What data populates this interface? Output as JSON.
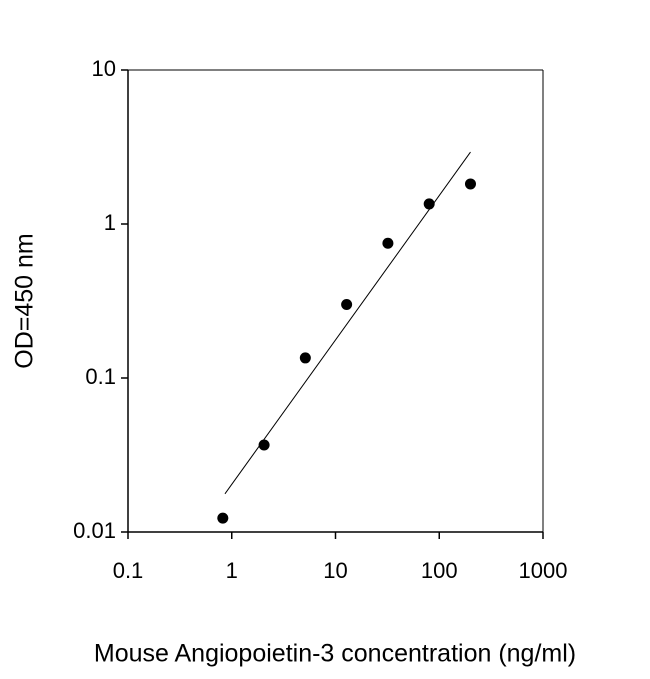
{
  "chart_data": {
    "type": "scatter",
    "x_label": "Mouse Angiopoietin-3 concentration (ng/ml)",
    "y_label": "OD=450 nm",
    "x": [
      0.82,
      2.05,
      5.12,
      12.8,
      32,
      80,
      200
    ],
    "values": [
      0.0123,
      0.0367,
      0.135,
      0.3,
      0.75,
      1.35,
      1.82
    ],
    "color": "#000000",
    "trendline": {
      "x": [
        0.86,
        200
      ],
      "y": [
        0.0177,
        2.93
      ],
      "color": "#000000"
    },
    "x_log": true,
    "y_log": true,
    "xlim": [
      0.1,
      1000
    ],
    "ylim": [
      0.01,
      10
    ],
    "xticks": [
      0.1,
      1,
      10,
      100,
      1000
    ],
    "yticks": [
      0.01,
      0.1,
      1,
      10
    ]
  }
}
